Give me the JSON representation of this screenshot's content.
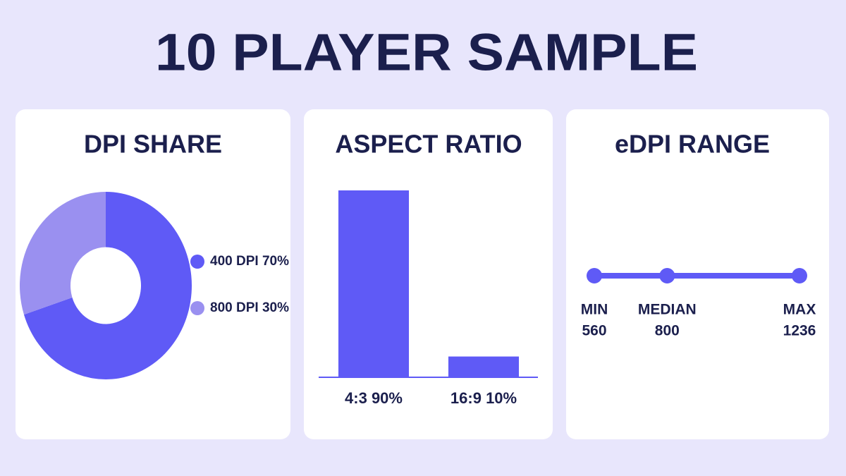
{
  "title": "10 PLAYER SAMPLE",
  "chart_data": [
    {
      "type": "pie",
      "title": "DPI SHARE",
      "categories": [
        "400 DPI",
        "800 DPI"
      ],
      "values": [
        70,
        30
      ],
      "value_labels": [
        "70%",
        "30%"
      ],
      "colors": [
        "#5f5af6",
        "#9a90f0"
      ],
      "donut": true
    },
    {
      "type": "bar",
      "title": "ASPECT RATIO",
      "categories": [
        "4:3",
        "16:9"
      ],
      "values": [
        90,
        10
      ],
      "value_labels": [
        "90%",
        "10%"
      ],
      "color": "#5f5af6"
    },
    {
      "type": "range",
      "title": "eDPI RANGE",
      "categories": [
        "MIN",
        "MEDIAN",
        "MAX"
      ],
      "values": [
        560,
        800,
        1236
      ],
      "color": "#5f5af6"
    }
  ]
}
